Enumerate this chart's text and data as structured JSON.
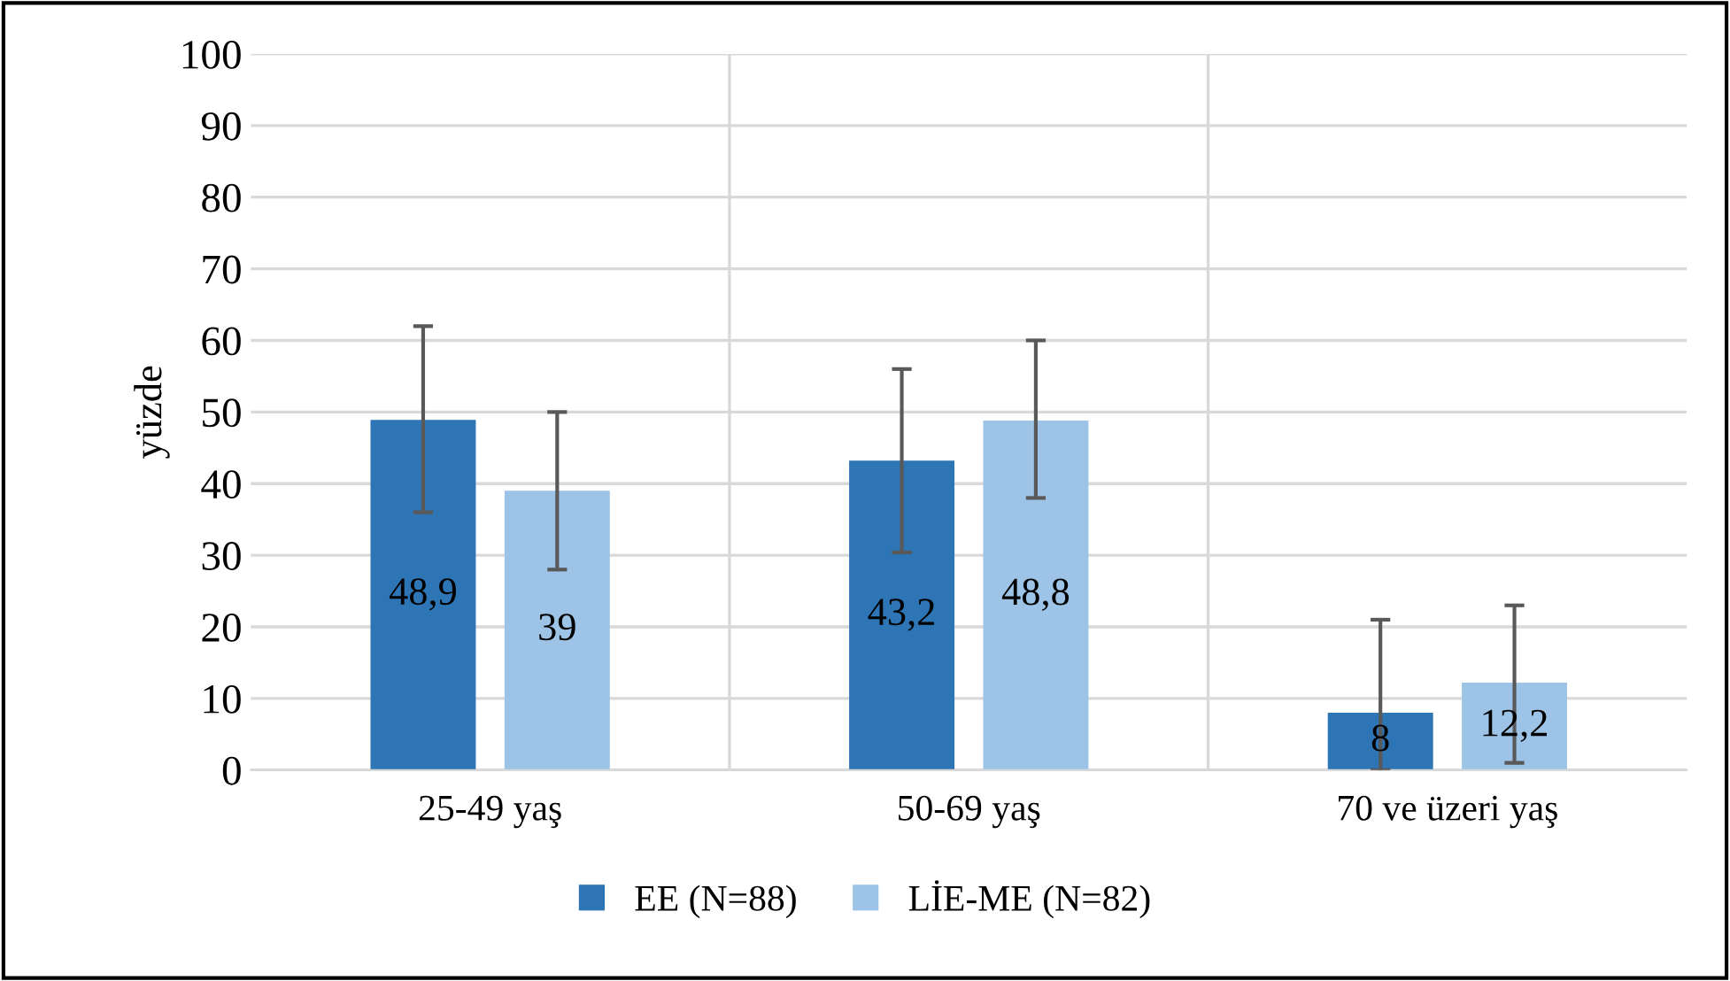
{
  "chart_data": {
    "type": "bar",
    "ylabel": "yüzde",
    "categories": [
      "25-49 yaş",
      "50-69 yaş",
      "70 ve üzeri yaş"
    ],
    "series": [
      {
        "name": "EE (N=88)",
        "color": "#2e75b6",
        "values": [
          48.9,
          43.2,
          8
        ],
        "value_labels": [
          "48,9",
          "43,2",
          "8"
        ],
        "errors": [
          [
            36,
            62
          ],
          [
            30.4,
            56
          ],
          [
            0,
            21
          ]
        ]
      },
      {
        "name": "LİE-ME (N=82)",
        "color": "#9dc3e6",
        "values": [
          39,
          48.8,
          12.2
        ],
        "value_labels": [
          "39",
          "48,8",
          "12,2"
        ],
        "errors": [
          [
            28,
            50
          ],
          [
            38,
            60
          ],
          [
            1,
            23
          ]
        ]
      }
    ],
    "ylim": [
      0,
      100
    ],
    "yticks": [
      0,
      10,
      20,
      30,
      40,
      50,
      60,
      70,
      80,
      90,
      100
    ],
    "grid": true,
    "legend": "bottom"
  }
}
